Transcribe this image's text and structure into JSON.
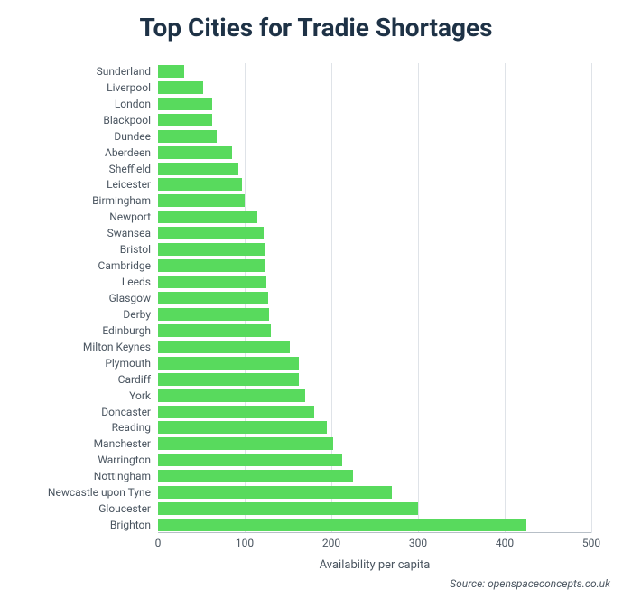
{
  "chart": {
    "type": "bar-horizontal",
    "title": "Top Cities for Tradie Shortages",
    "title_fontsize": 28,
    "title_color": "#1e3246",
    "xaxis_label": "Availability per capita",
    "xaxis_label_fontsize": 13,
    "source_text": "Source: openspaceconcepts.co.uk",
    "source_fontsize": 12,
    "xlim": [
      0,
      500
    ],
    "xtick_step": 100,
    "xticks": [
      0,
      100,
      200,
      300,
      400,
      500
    ],
    "ylabel_fontsize": 12,
    "xtick_fontsize": 12,
    "bar_color": "#58da5d",
    "background_color": "#ffffff",
    "grid_color": "#dfe3e8",
    "axis_color": "#b7bfc7",
    "text_color": "#4a5560",
    "bar_gap_ratio": 0.22,
    "categories": [
      "Sunderland",
      "Liverpool",
      "London",
      "Blackpool",
      "Dundee",
      "Aberdeen",
      "Sheffield",
      "Leicester",
      "Birmingham",
      "Newport",
      "Swansea",
      "Bristol",
      "Cambridge",
      "Leeds",
      "Glasgow",
      "Derby",
      "Edinburgh",
      "Milton Keynes",
      "Plymouth",
      "Cardiff",
      "York",
      "Doncaster",
      "Reading",
      "Manchester",
      "Warrington",
      "Nottingham",
      "Newcastle upon Tyne",
      "Gloucester",
      "Brighton"
    ],
    "values": [
      30,
      52,
      62,
      63,
      68,
      85,
      93,
      97,
      100,
      115,
      122,
      123,
      124,
      125,
      127,
      128,
      130,
      152,
      162,
      163,
      170,
      180,
      195,
      202,
      212,
      225,
      270,
      300,
      425
    ]
  }
}
